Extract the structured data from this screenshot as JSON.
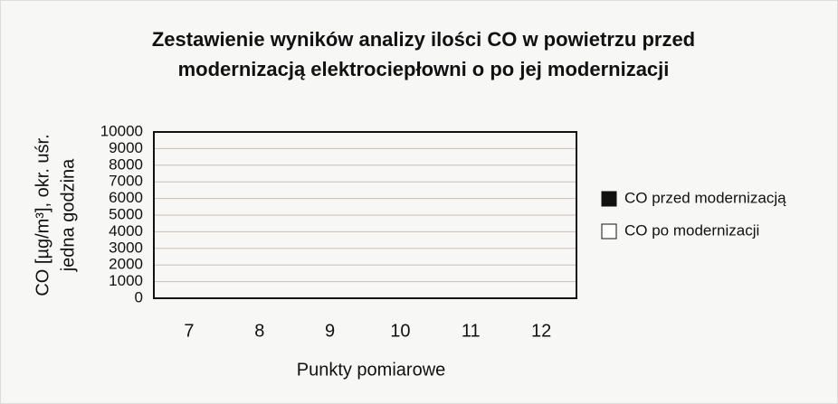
{
  "chart_data": {
    "type": "bar",
    "title": [
      "Zestawienie wyników analizy ilości CO w powietrzu przed",
      "modernizacją elektrociepłowni o po jej modernizacji"
    ],
    "y_label": [
      "CO [µg/m³], okr. uśr.",
      "jedna godzina"
    ],
    "x_label": "Punkty pomiarowe",
    "categories": [
      "7",
      "8",
      "9",
      "10",
      "11",
      "12"
    ],
    "series": [
      {
        "name": "CO przed modernizacją",
        "color": "#111111",
        "values": [
          null,
          null,
          null,
          null,
          null,
          null
        ]
      },
      {
        "name": "CO po modernizacji",
        "color": "#ffffff",
        "values": [
          null,
          null,
          null,
          null,
          null,
          null
        ]
      }
    ],
    "ylim": [
      0,
      10000
    ],
    "yticks": [
      0,
      1000,
      2000,
      3000,
      4000,
      5000,
      6000,
      7000,
      8000,
      9000,
      10000
    ],
    "grid": true,
    "legend": "right"
  }
}
